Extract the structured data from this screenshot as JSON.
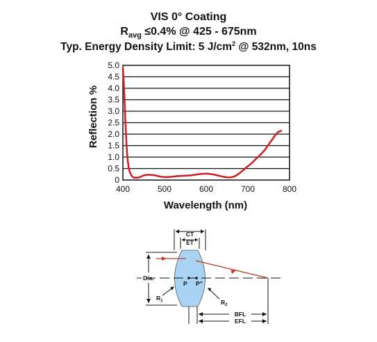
{
  "chart_data": {
    "type": "line",
    "title": {
      "line1": "VIS 0° Coating",
      "line2_main": "R",
      "line2_sub": "avg",
      "line2_rest": " ≤0.4% @ 425 - 675nm",
      "line3_main": "Typ. Energy Density Limit: 5 J/cm",
      "line3_sup": "2",
      "line3_rest": " @ 532nm, 10ns"
    },
    "xlabel": "Wavelength (nm)",
    "ylabel": "Reflection %",
    "xlim": [
      400,
      800
    ],
    "ylim": [
      0,
      5.0
    ],
    "xticks": [
      "400",
      "500",
      "600",
      "700",
      "800"
    ],
    "xtick_values": [
      400,
      500,
      600,
      700,
      800
    ],
    "yticks": [
      "0",
      "0.5",
      "1.0",
      "1.5",
      "2.0",
      "2.5",
      "3.0",
      "3.5",
      "4.0",
      "4.5",
      "5.0"
    ],
    "ytick_values": [
      0,
      0.5,
      1.0,
      1.5,
      2.0,
      2.5,
      3.0,
      3.5,
      4.0,
      4.5,
      5.0
    ],
    "grid": "horizontal",
    "line_color": "#cc2229",
    "series": [
      {
        "x": [
          400,
          402,
          404,
          406,
          408,
          410,
          412,
          415,
          420,
          425,
          430,
          440,
          450,
          460,
          470,
          480,
          490,
          500,
          510,
          520,
          530,
          540,
          550,
          560,
          570,
          580,
          590,
          600,
          610,
          620,
          630,
          640,
          650,
          660,
          670,
          680,
          690,
          700,
          710,
          720,
          730,
          740,
          750,
          760,
          770,
          780
        ],
        "y": [
          4.9,
          4.3,
          3.5,
          2.6,
          1.8,
          1.2,
          0.8,
          0.45,
          0.22,
          0.12,
          0.1,
          0.12,
          0.2,
          0.23,
          0.22,
          0.19,
          0.15,
          0.13,
          0.13,
          0.15,
          0.17,
          0.18,
          0.19,
          0.2,
          0.22,
          0.25,
          0.27,
          0.28,
          0.26,
          0.23,
          0.19,
          0.15,
          0.12,
          0.12,
          0.18,
          0.3,
          0.45,
          0.6,
          0.75,
          0.93,
          1.1,
          1.3,
          1.55,
          1.8,
          2.05,
          2.15
        ]
      }
    ]
  },
  "diagram": {
    "labels": {
      "ct": "CT",
      "et": "ET",
      "dia": "Dia.",
      "p": "P",
      "p_prime": "P\"",
      "r1_main": "R",
      "r1_sub": "1",
      "r2_main": "R",
      "r2_sub": "2",
      "bfl": "BFL",
      "efl": "EFL"
    },
    "lens_color": "#a9d3f2",
    "ray_color": "#c0392b"
  }
}
